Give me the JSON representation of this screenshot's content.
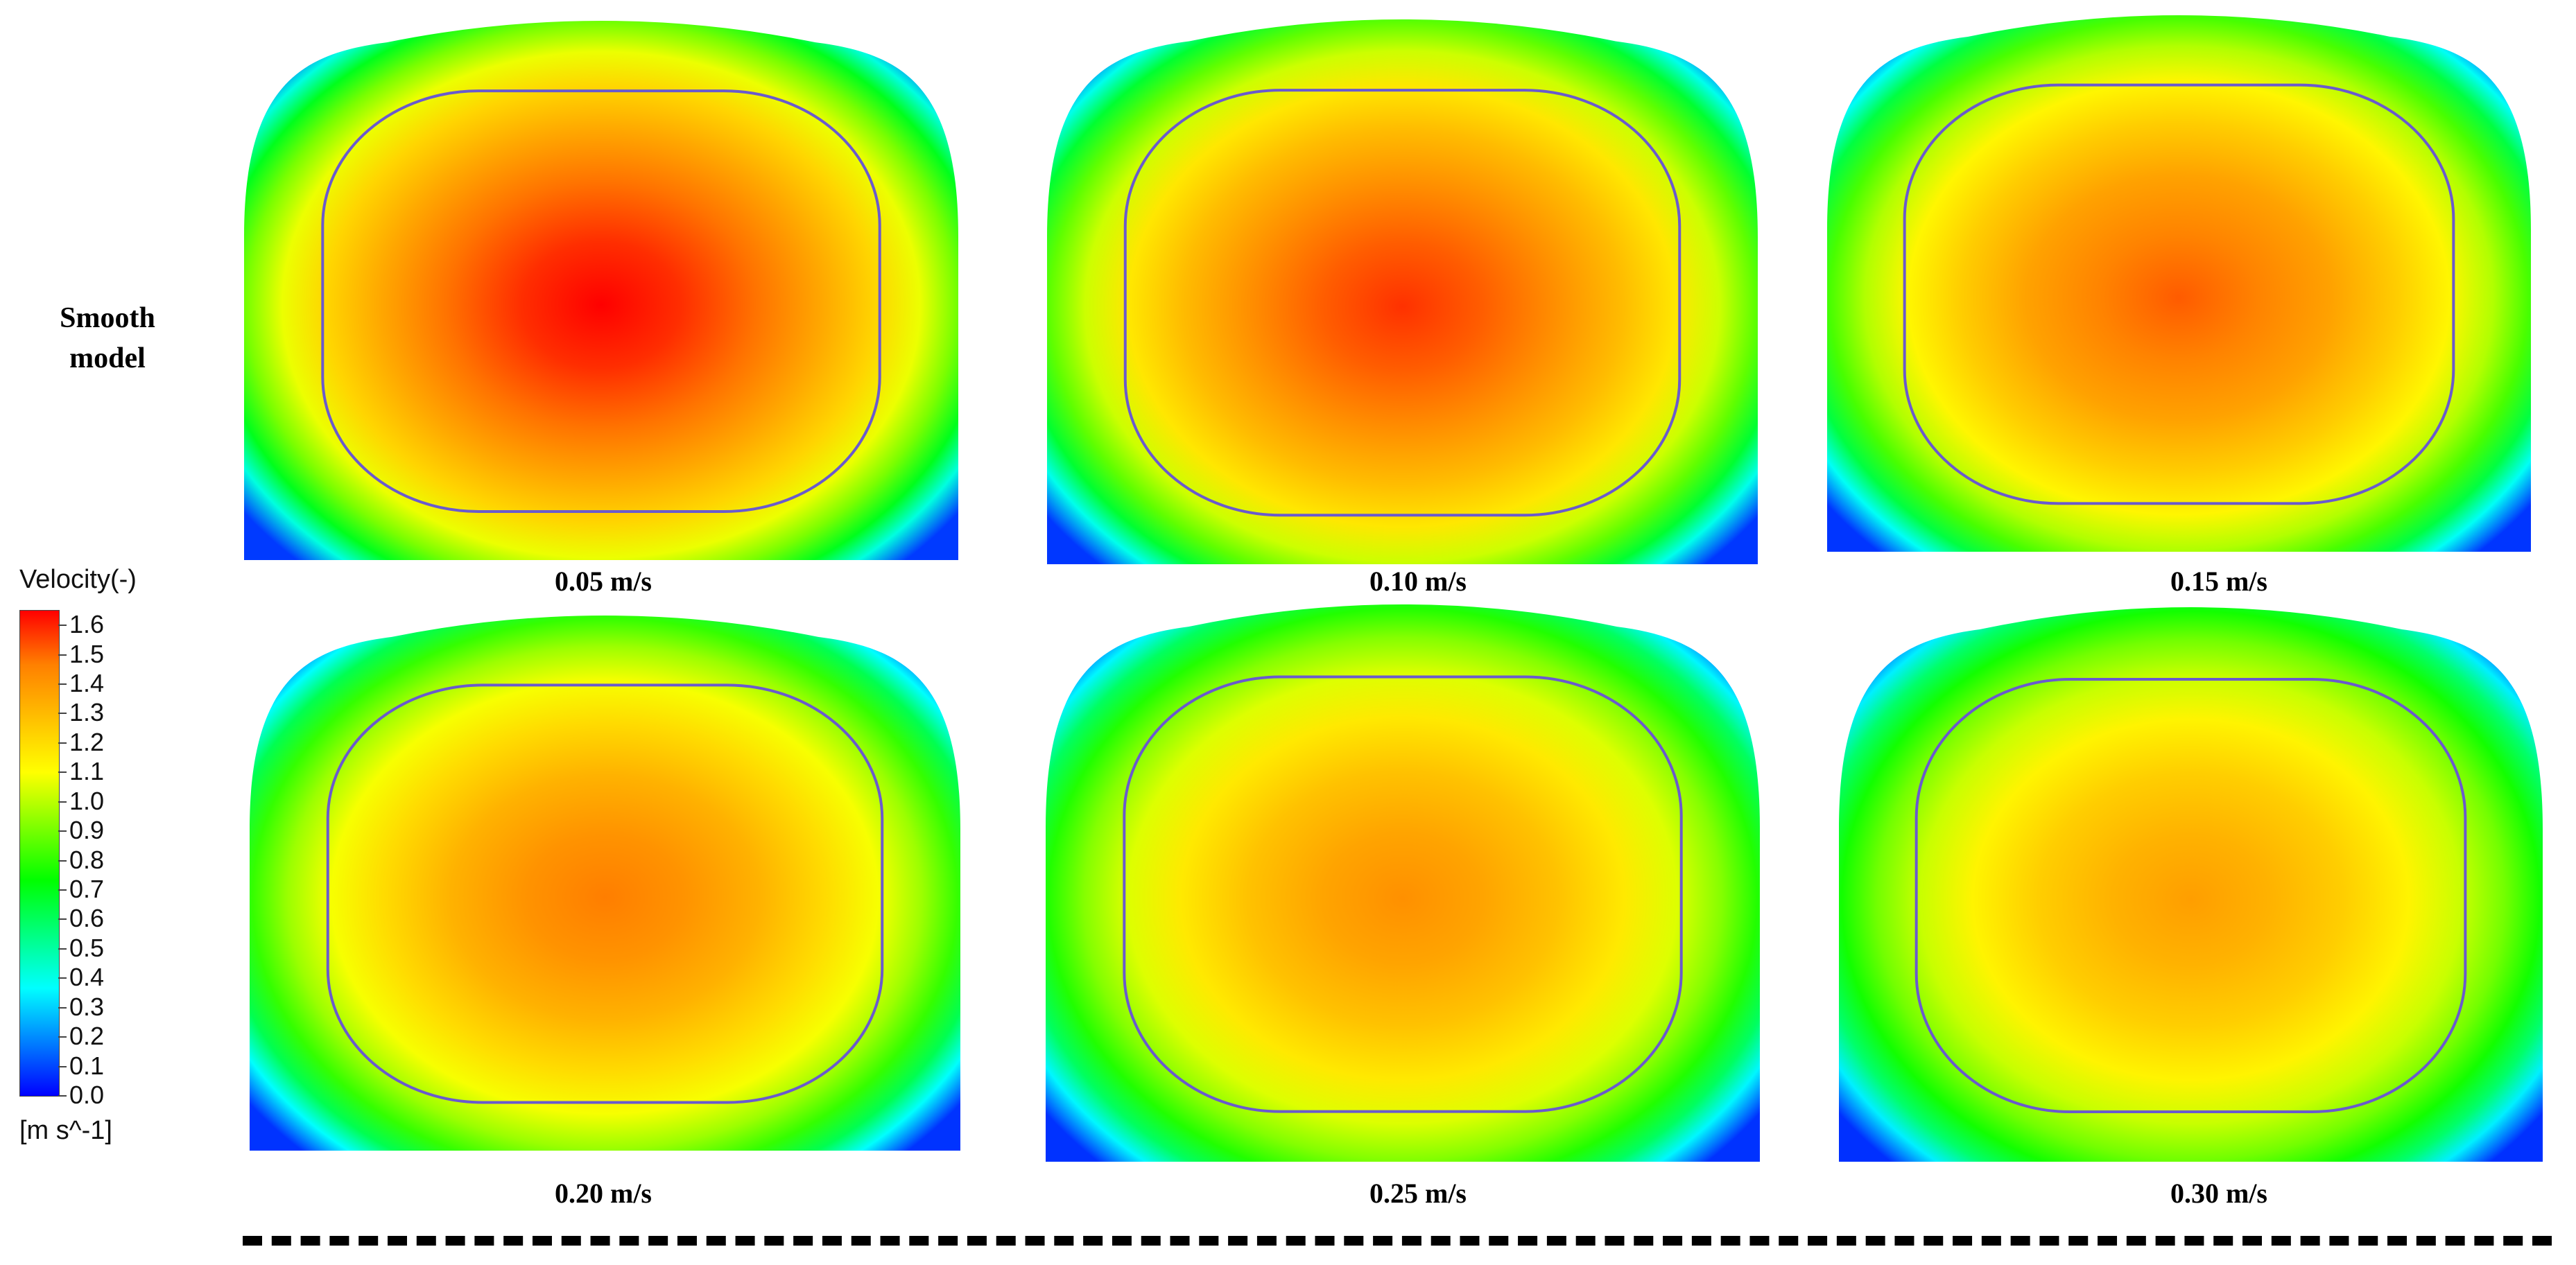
{
  "row_label": {
    "line1": "Smooth",
    "line2": "model"
  },
  "legend": {
    "title": "Velocity(-)",
    "unit": "[m s^-1]",
    "ticks": [
      "1.6",
      "1.5",
      "1.4",
      "1.3",
      "1.2",
      "1.1",
      "1.0",
      "0.9",
      "0.8",
      "0.7",
      "0.6",
      "0.5",
      "0.4",
      "0.3",
      "0.2",
      "0.1",
      "0.0"
    ],
    "min": 0.0,
    "max": 1.65
  },
  "panels": [
    {
      "caption": "0.05 m/s",
      "peak_velocity": 1.65
    },
    {
      "caption": "0.10 m/s",
      "peak_velocity": 1.58
    },
    {
      "caption": "0.15 m/s",
      "peak_velocity": 1.52
    },
    {
      "caption": "0.20 m/s",
      "peak_velocity": 1.47
    },
    {
      "caption": "0.25 m/s",
      "peak_velocity": 1.42
    },
    {
      "caption": "0.30 m/s",
      "peak_velocity": 1.38
    }
  ],
  "colors": {
    "contour_line": "#6a5acd",
    "dash_line": "#000000",
    "colormap": [
      "#0000ff",
      "#0080ff",
      "#00ffff",
      "#00ff80",
      "#00ff00",
      "#80ff00",
      "#ffff00",
      "#ffc000",
      "#ff8000",
      "#ff0000"
    ]
  }
}
